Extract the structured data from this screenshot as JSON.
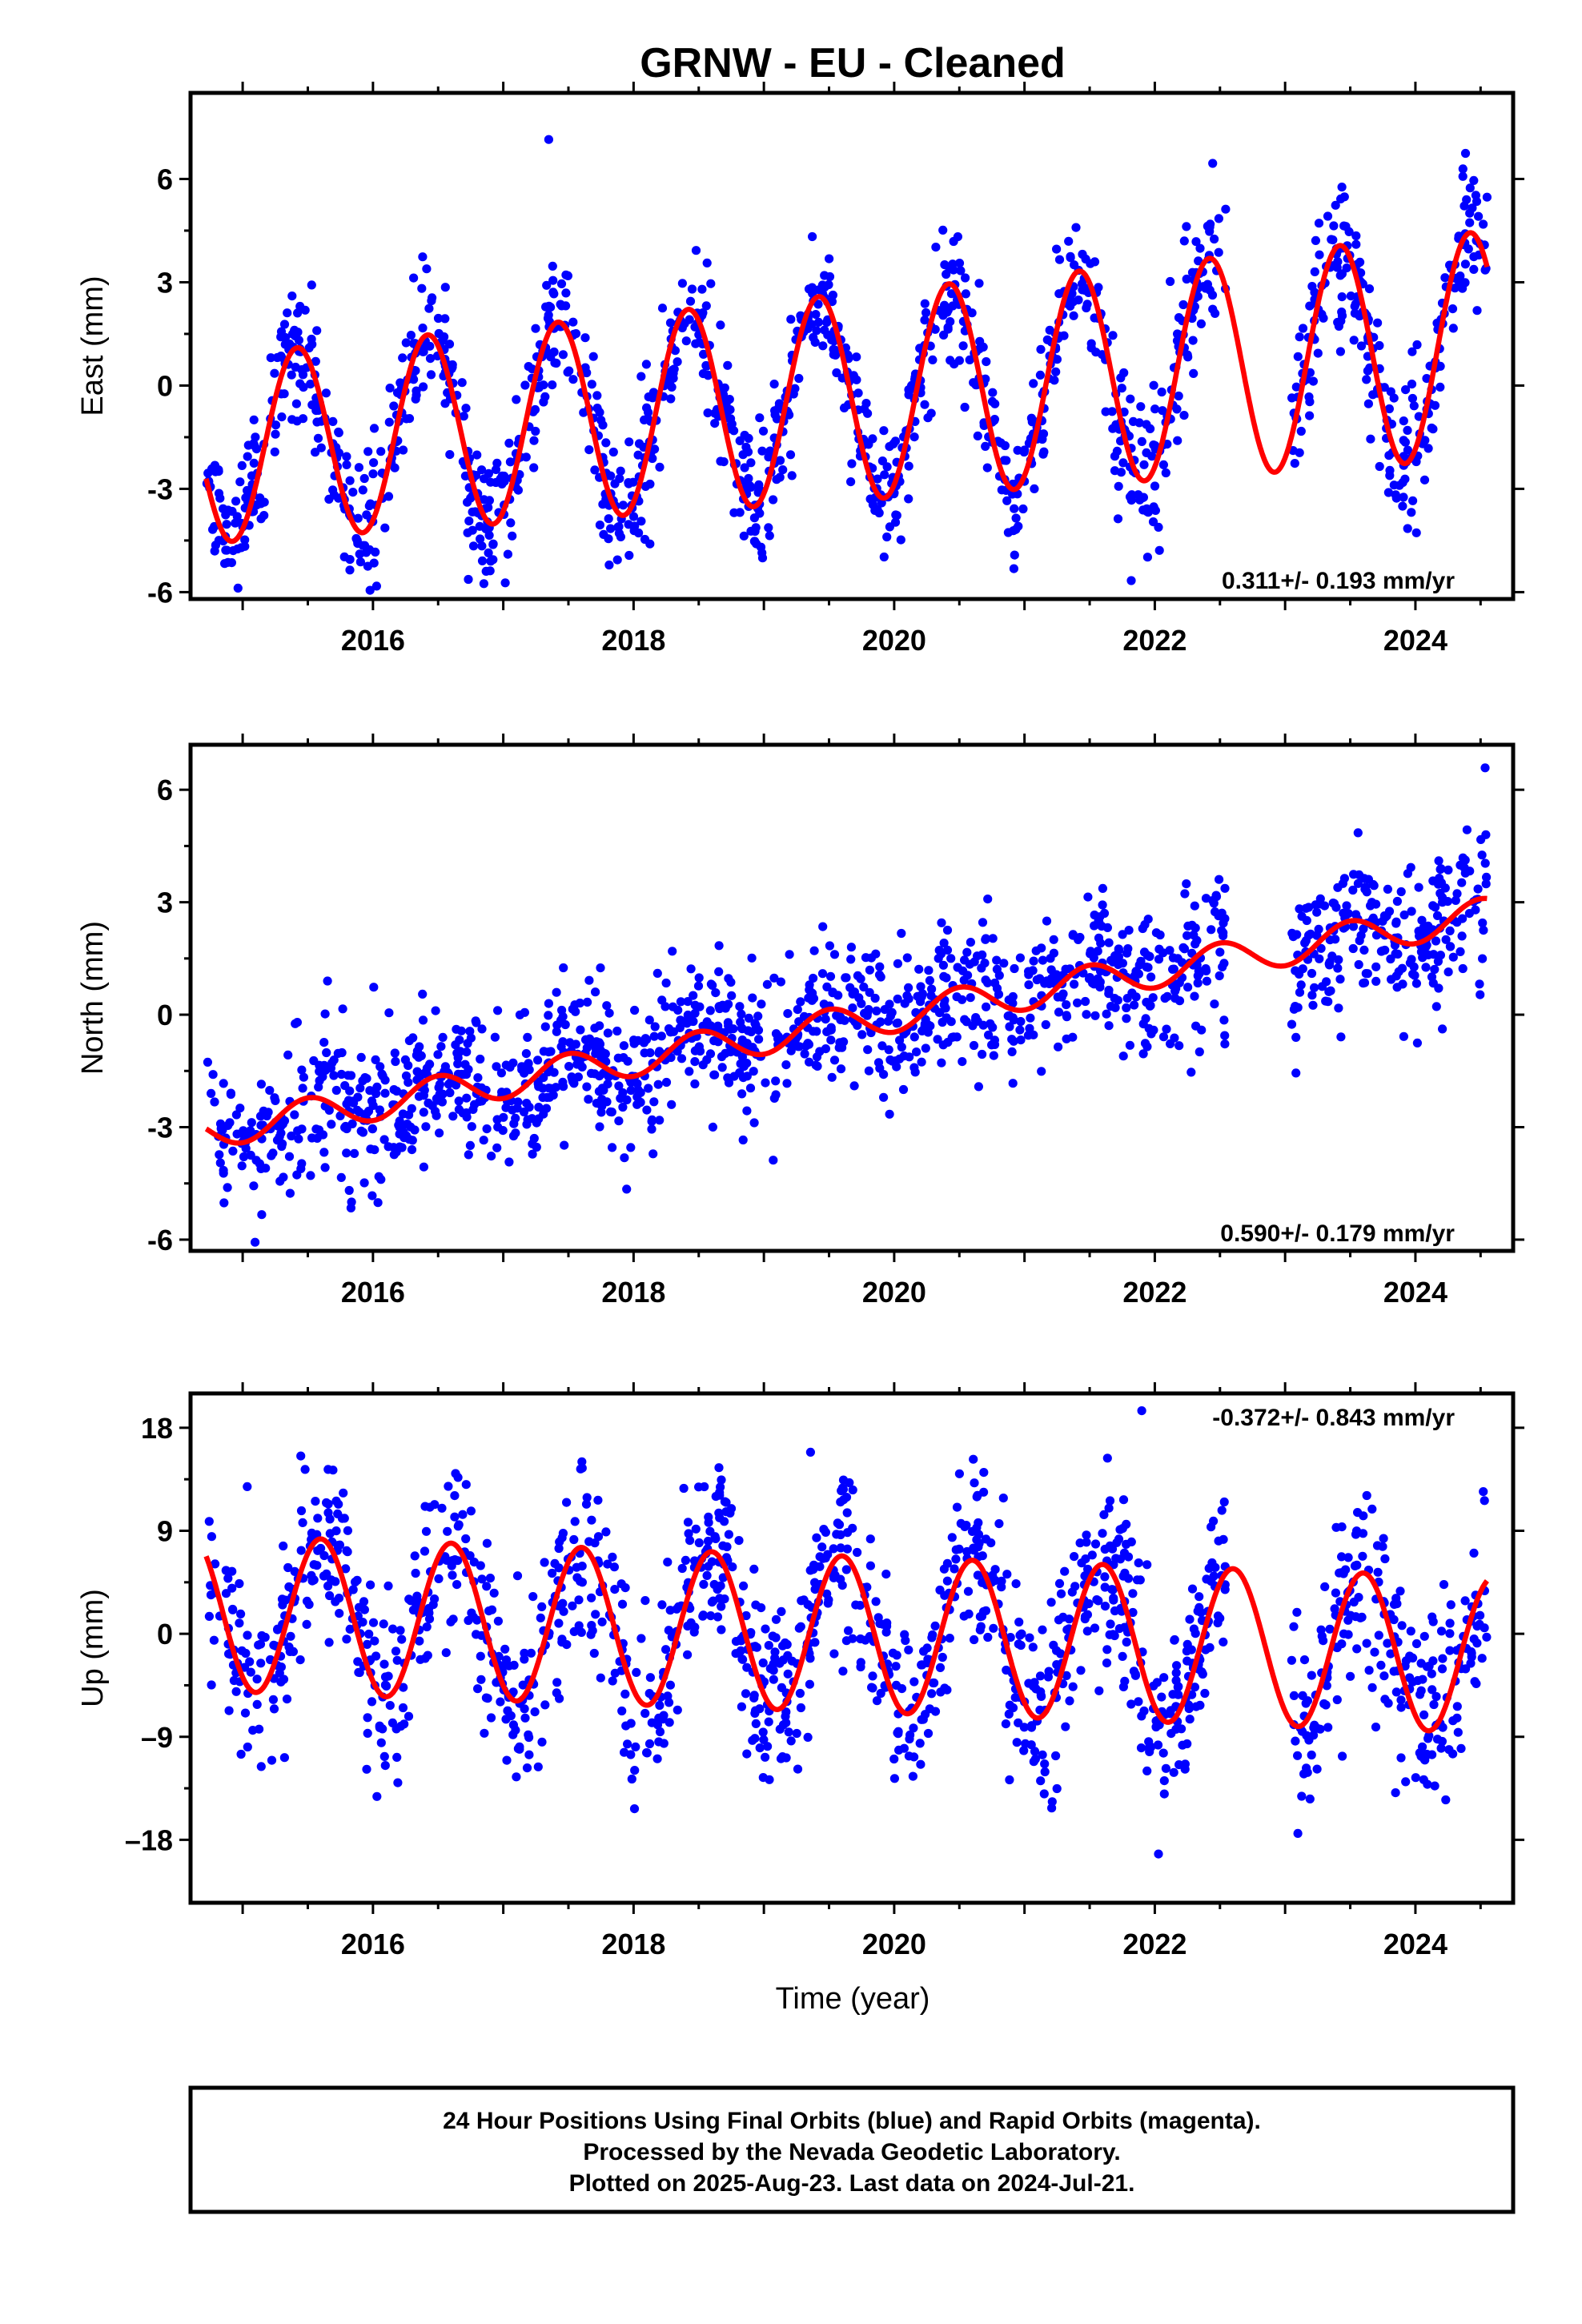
{
  "title": "GRNW  - EU - Cleaned",
  "xlabel": "Time (year)",
  "footer": {
    "line1": "24 Hour Positions Using Final Orbits (blue) and Rapid Orbits (magenta).",
    "line2": "Processed by the Nevada Geodetic Laboratory.",
    "line3": "Plotted on 2025-Aug-23. Last data on 2024-Jul-21."
  },
  "colors": {
    "points": "#0000ff",
    "model": "#ff0000",
    "frame": "#000000"
  },
  "chart_data": [
    {
      "type": "scatter",
      "name": "east",
      "ylabel": "East (mm)",
      "rate_label": "0.311+/- 0.193 mm/yr",
      "legend": "bottom-right, blue dot marker",
      "xlim": [
        2014.6,
        2024.75
      ],
      "ylim": [
        -6.2,
        8.5
      ],
      "xticks": [
        2016,
        2018,
        2020,
        2022,
        2024
      ],
      "yticks": [
        -6,
        -3,
        0,
        3,
        6
      ],
      "ytick_labels": [
        "-6",
        "-3",
        "0",
        "3",
        "6"
      ],
      "data_start": 2014.72,
      "data_end": 2024.55,
      "gaps": [
        [
          2022.55,
          2023.05
        ]
      ],
      "model": {
        "offset": -0.35,
        "rate": 0.311,
        "ref_year": 2019.6,
        "annual_amp": 3.0,
        "peak_frac": 0.42,
        "amp_growth": 0.02
      },
      "scatter_sd": 1.0,
      "n_points": 1500,
      "series": [
        {
          "name": "24 Hour Positions",
          "color": "#0000ff"
        },
        {
          "name": "model fit",
          "color": "#ff0000"
        }
      ]
    },
    {
      "type": "scatter",
      "name": "north",
      "ylabel": "North (mm)",
      "rate_label": "0.590+/- 0.179 mm/yr",
      "legend": "bottom-right",
      "xlim": [
        2014.6,
        2024.75
      ],
      "ylim": [
        -6.3,
        7.2
      ],
      "xticks": [
        2016,
        2018,
        2020,
        2022,
        2024
      ],
      "yticks": [
        -6,
        -3,
        0,
        3,
        6
      ],
      "ytick_labels": [
        "-6",
        "-3",
        "0",
        "3",
        "6"
      ],
      "data_start": 2014.72,
      "data_end": 2024.55,
      "gaps": [
        [
          2022.55,
          2023.05
        ]
      ],
      "model": {
        "offset": -0.25,
        "rate": 0.59,
        "ref_year": 2019.6,
        "annual_amp": 0.45,
        "peak_frac": 0.5,
        "amp_growth": 0.0
      },
      "scatter_sd": 0.95,
      "n_points": 1500,
      "series": [
        {
          "name": "24 Hour Positions",
          "color": "#0000ff"
        },
        {
          "name": "model fit",
          "color": "#ff0000"
        }
      ]
    },
    {
      "type": "scatter",
      "name": "up",
      "ylabel": "Up (mm)",
      "rate_label": "-0.372+/- 0.843 mm/yr",
      "legend": "top-right",
      "xlim": [
        2014.6,
        2024.75
      ],
      "ylim": [
        -23.5,
        21
      ],
      "xticks": [
        2016,
        2018,
        2020,
        2022,
        2024
      ],
      "yticks": [
        -18,
        -9,
        0,
        9,
        18
      ],
      "ytick_labels": [
        "–18",
        "–9",
        "0",
        "9",
        "18"
      ],
      "data_start": 2014.72,
      "data_end": 2024.55,
      "gaps": [
        [
          2022.55,
          2023.05
        ]
      ],
      "model": {
        "offset": 0.0,
        "rate": -0.372,
        "ref_year": 2019.6,
        "annual_amp": 6.8,
        "peak_frac": 0.6,
        "amp_growth": 0.0
      },
      "scatter_sd": 4.0,
      "n_points": 1500,
      "series": [
        {
          "name": "24 Hour Positions",
          "color": "#0000ff"
        },
        {
          "name": "model fit",
          "color": "#ff0000"
        }
      ]
    }
  ]
}
